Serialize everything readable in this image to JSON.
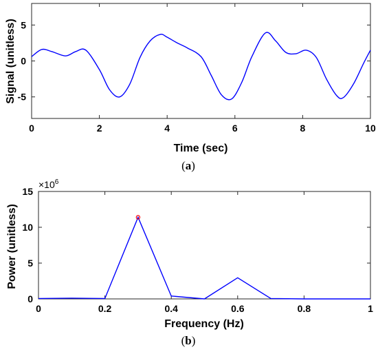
{
  "chart_data": [
    {
      "type": "line",
      "caption": "(a)",
      "caption_letter": "a",
      "xlabel": "Time (sec)",
      "ylabel": "Signal (unitless)",
      "xlim": [
        0,
        10
      ],
      "ylim": [
        -8,
        8
      ],
      "xticks": [
        "0",
        "2",
        "4",
        "6",
        "8",
        "10"
      ],
      "xtick_values": [
        0,
        2,
        4,
        6,
        8,
        10
      ],
      "yticks": [
        "5",
        "0",
        "-5"
      ],
      "ytick_values": [
        5,
        0,
        -5
      ],
      "line_color": "#0000ff",
      "series": [
        {
          "x": [
            0,
            0.3,
            0.6,
            1.0,
            1.3,
            1.6,
            2.0,
            2.3,
            2.6,
            2.9,
            3.2,
            3.5,
            3.8,
            4.0,
            4.3,
            4.6,
            5.0,
            5.3,
            5.6,
            5.9,
            6.2,
            6.5,
            6.9,
            7.2,
            7.5,
            7.8,
            8.1,
            8.4,
            8.7,
            9.0,
            9.2,
            9.5,
            9.8,
            10.0
          ],
          "y": [
            0.6,
            1.6,
            1.3,
            0.7,
            1.3,
            1.5,
            -1.2,
            -4.0,
            -5.0,
            -3.2,
            0.5,
            2.8,
            3.7,
            3.3,
            2.5,
            1.8,
            0.6,
            -2.0,
            -4.7,
            -5.3,
            -3.0,
            0.6,
            3.9,
            2.8,
            1.2,
            1.0,
            1.5,
            0.5,
            -2.5,
            -4.8,
            -5.1,
            -3.2,
            -0.3,
            1.5
          ]
        }
      ]
    },
    {
      "type": "line",
      "caption": "(b)",
      "caption_letter": "b",
      "xlabel": "Frequency (Hz)",
      "ylabel": "Power (unitless)",
      "exponent_label": "×10",
      "exponent_power": "6",
      "xlim": [
        0,
        1
      ],
      "ylim": [
        0,
        15
      ],
      "xticks": [
        "0",
        "0.2",
        "0.4",
        "0.6",
        "0.8",
        "1"
      ],
      "xtick_values": [
        0,
        0.2,
        0.4,
        0.6,
        0.8,
        1
      ],
      "yticks": [
        "15",
        "10",
        "5",
        "0"
      ],
      "ytick_values": [
        15,
        10,
        5,
        0
      ],
      "line_color": "#0000ff",
      "marker_color": "#ff0000",
      "series": [
        {
          "x": [
            0,
            0.1,
            0.2,
            0.3,
            0.4,
            0.5,
            0.6,
            0.7,
            0.8,
            0.9,
            1.0
          ],
          "y": [
            0.05,
            0.1,
            0.05,
            11.4,
            0.4,
            0.0,
            2.95,
            0.05,
            0.0,
            0.0,
            0.0
          ]
        }
      ],
      "peak": {
        "x": 0.3,
        "y": 11.4
      }
    }
  ]
}
